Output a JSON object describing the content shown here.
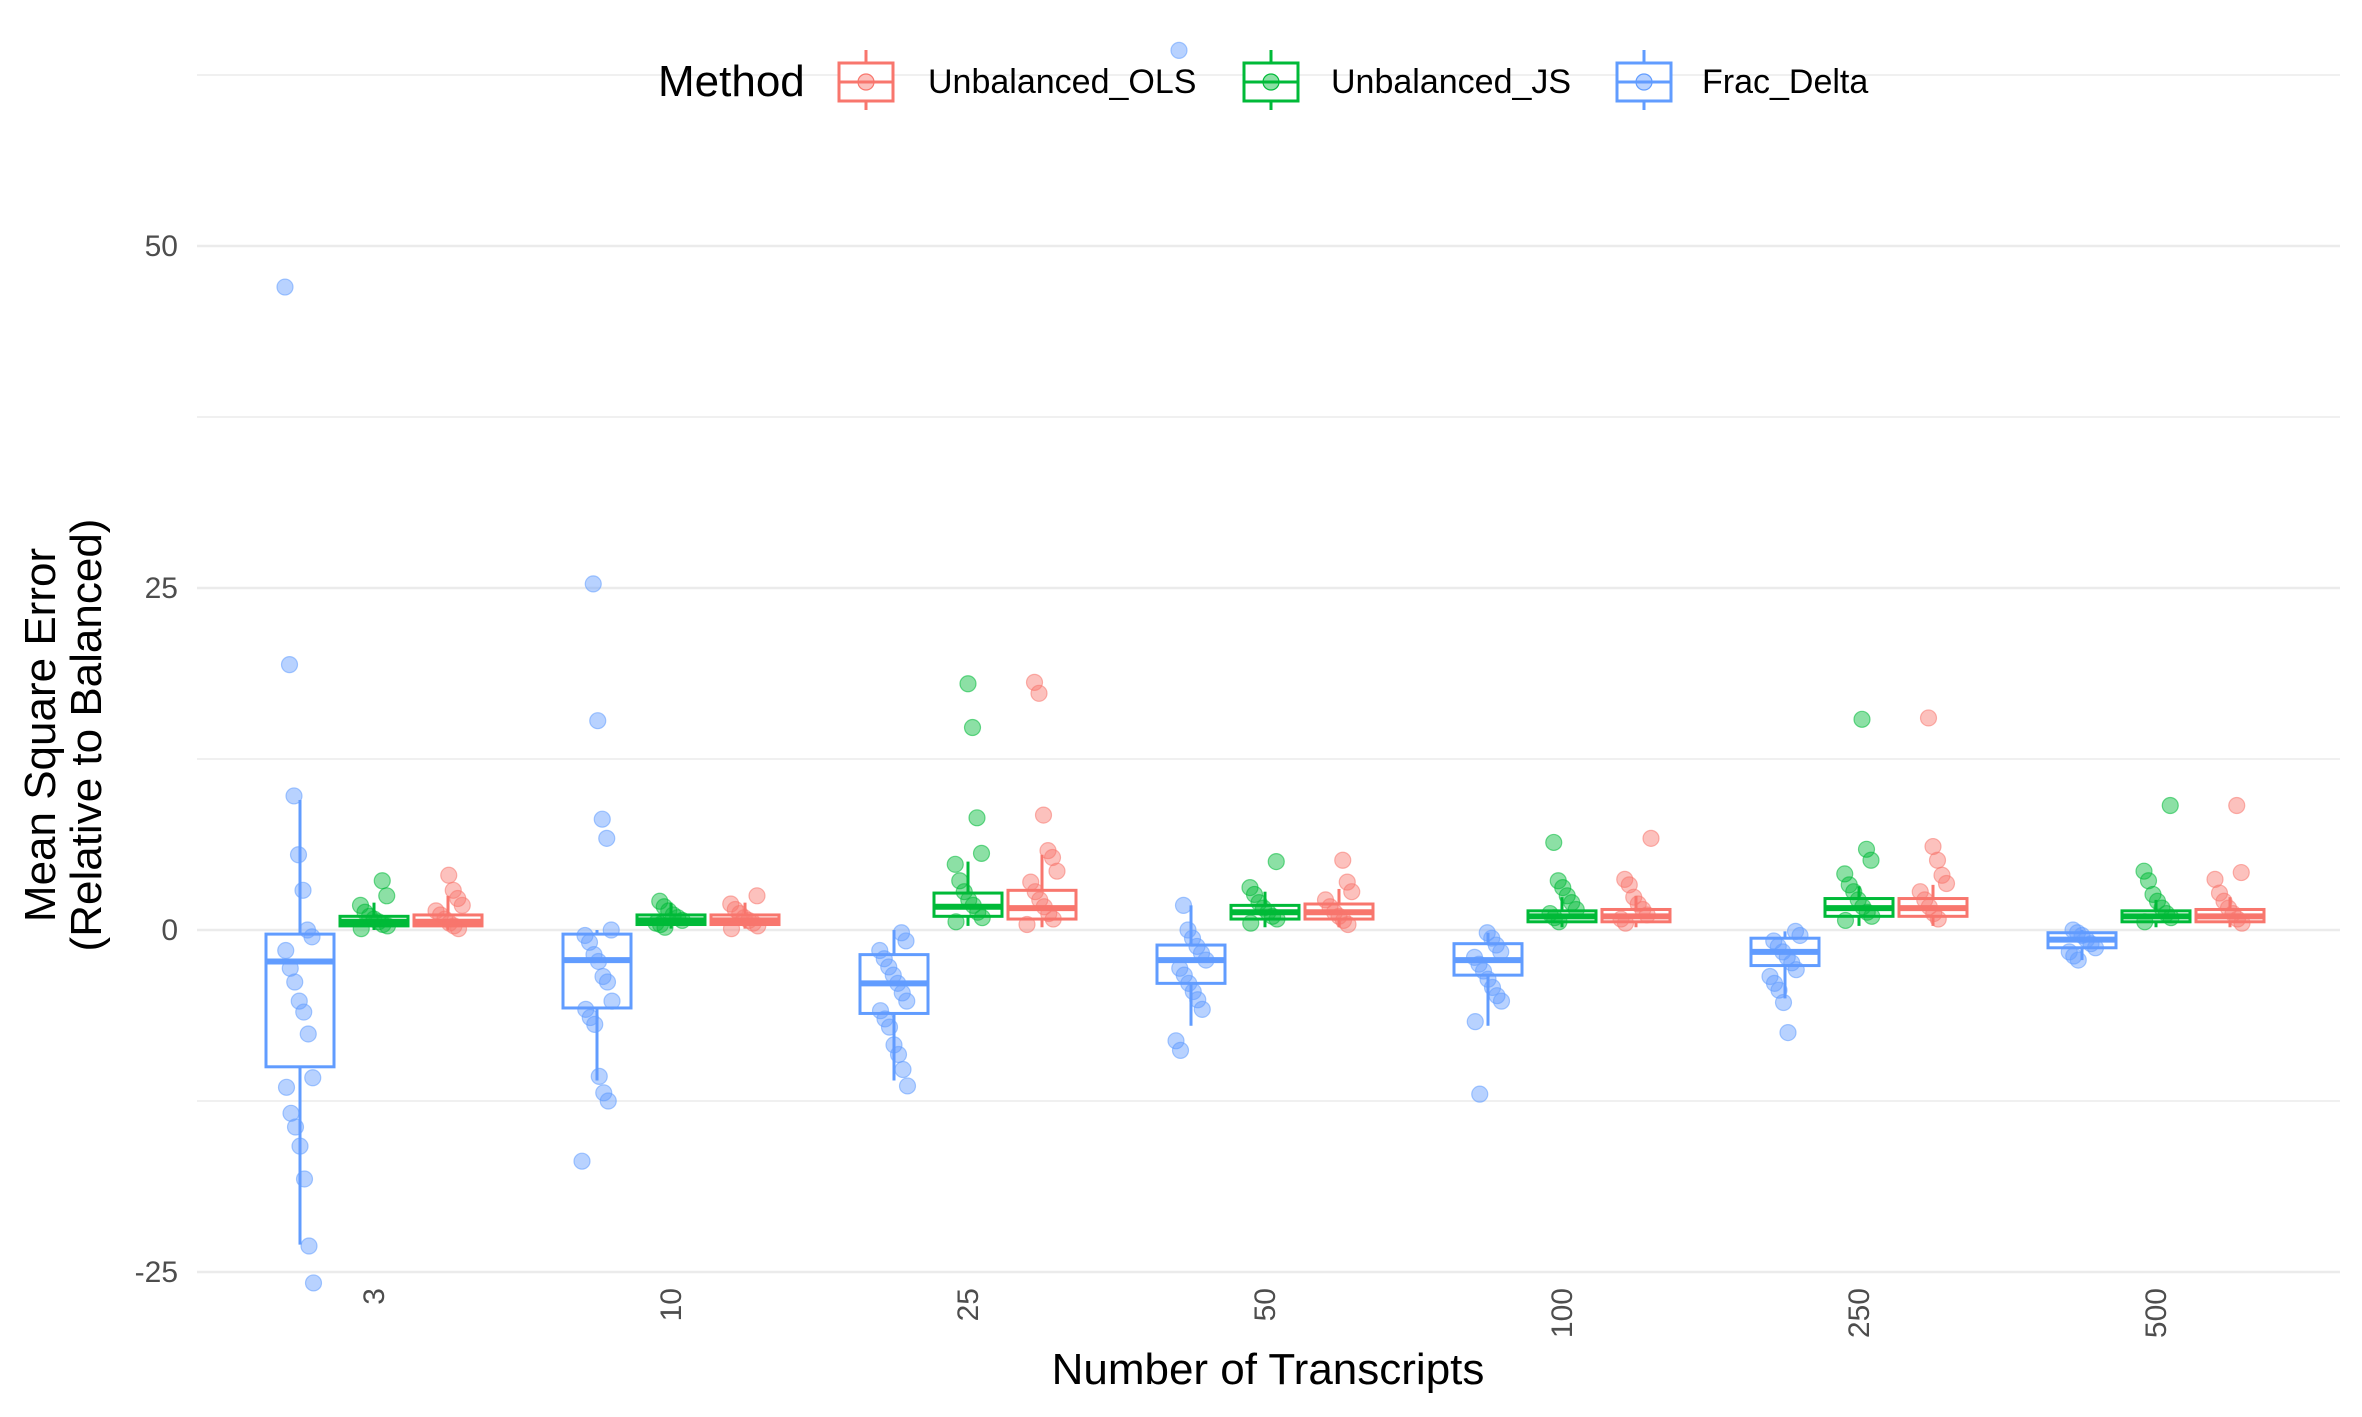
{
  "chart_data": {
    "type": "box",
    "title": "",
    "xlabel": "Number of Transcripts",
    "ylabel_lines": [
      "Mean Square Error",
      "(Relative to Balanced)"
    ],
    "ylim": [
      -29.5,
      63
    ],
    "yticks": [
      -25,
      0,
      25,
      50
    ],
    "ytick_labels": [
      "-25",
      "0",
      "25",
      "50"
    ],
    "grid": true,
    "legend": {
      "title": "Method",
      "placement": "top",
      "entries": [
        "Unbalanced_OLS",
        "Unbalanced_JS",
        "Frac_Delta"
      ]
    },
    "categories": [
      "3",
      "10",
      "25",
      "50",
      "100",
      "250",
      "500"
    ],
    "series": [
      {
        "name": "Frac_Delta",
        "color": "#619CFF",
        "boxes": [
          {
            "q1": -10,
            "median": -2.3,
            "q3": -0.3,
            "lower": -23,
            "upper": 9.5
          },
          {
            "q1": -5.7,
            "median": -2.2,
            "q3": -0.3,
            "lower": -11,
            "upper": 0
          },
          {
            "q1": -6.1,
            "median": -3.9,
            "q3": -1.8,
            "lower": -11,
            "upper": 0
          },
          {
            "q1": -3.9,
            "median": -2.2,
            "q3": -1.1,
            "lower": -7,
            "upper": 1.8
          },
          {
            "q1": -3.3,
            "median": -2.2,
            "q3": -1.0,
            "lower": -7,
            "upper": -0.2
          },
          {
            "q1": -2.6,
            "median": -1.6,
            "q3": -0.6,
            "lower": -5,
            "upper": -0.1
          },
          {
            "q1": -1.3,
            "median": -0.7,
            "q3": -0.2,
            "lower": -2.2,
            "upper": 0
          }
        ],
        "points": [
          [
            47,
            19.4,
            9.8,
            5.5,
            2.9,
            0,
            -0.5,
            -1.5,
            -2.8,
            -3.8,
            -5.2,
            -6,
            -7.6,
            -10.8,
            -11.5,
            -13.4,
            -14.4,
            -15.8,
            -18.2,
            -23.1,
            -25.8
          ],
          [
            25.3,
            15.3,
            8.1,
            6.7,
            0,
            -0.4,
            -0.9,
            -1.8,
            -2.3,
            -3.4,
            -3.8,
            -5.2,
            -5.8,
            -6.4,
            -6.9,
            -10.7,
            -11.9,
            -12.5,
            -16.9
          ],
          [
            -0.2,
            -0.8,
            -1.5,
            -2.1,
            -2.7,
            -3.3,
            -3.9,
            -4.6,
            -5.2,
            -5.9,
            -6.5,
            -7.1,
            -8.4,
            -9.1,
            -10.2,
            -11.4
          ],
          [
            64.3,
            1.8,
            0,
            -0.6,
            -1.2,
            -1.7,
            -2.2,
            -2.8,
            -3.3,
            -3.9,
            -4.5,
            -5.1,
            -5.8,
            -8.1,
            -8.8
          ],
          [
            -0.2,
            -0.6,
            -1.1,
            -1.6,
            -2,
            -2.5,
            -3,
            -3.6,
            -4.2,
            -4.8,
            -5.2,
            -6.7,
            -12
          ],
          [
            -0.1,
            -0.4,
            -0.8,
            -1.2,
            -1.6,
            -2,
            -2.4,
            -2.9,
            -3.4,
            -3.9,
            -4.4,
            -5.3,
            -7.5
          ],
          [
            0,
            -0.2,
            -0.4,
            -0.7,
            -1,
            -1.3,
            -1.6,
            -1.9,
            -2.2
          ]
        ]
      },
      {
        "name": "Unbalanced_JS",
        "color": "#00BA38",
        "boxes": [
          {
            "q1": 0.3,
            "median": 0.6,
            "q3": 1.0,
            "lower": 0,
            "upper": 2
          },
          {
            "q1": 0.4,
            "median": 0.7,
            "q3": 1.1,
            "lower": 0.1,
            "upper": 2
          },
          {
            "q1": 1.0,
            "median": 1.7,
            "q3": 2.7,
            "lower": 0.3,
            "upper": 5
          },
          {
            "q1": 0.8,
            "median": 1.3,
            "q3": 1.8,
            "lower": 0.2,
            "upper": 2.8
          },
          {
            "q1": 0.6,
            "median": 1.0,
            "q3": 1.4,
            "lower": 0.2,
            "upper": 2.4
          },
          {
            "q1": 1.0,
            "median": 1.6,
            "q3": 2.3,
            "lower": 0.3,
            "upper": 3.2
          },
          {
            "q1": 0.6,
            "median": 1.0,
            "q3": 1.4,
            "lower": 0.2,
            "upper": 2.2
          }
        ],
        "points": [
          [
            3.6,
            2.5,
            1.8,
            1.3,
            1,
            0.8,
            0.6,
            0.4,
            0.3,
            0.1
          ],
          [
            2.1,
            1.7,
            1.4,
            1.1,
            0.9,
            0.7,
            0.5,
            0.4,
            0.2
          ],
          [
            18,
            14.8,
            8.2,
            5.6,
            4.8,
            3.6,
            2.8,
            2.2,
            1.8,
            1.3,
            0.9,
            0.6
          ],
          [
            5,
            3.1,
            2.6,
            2,
            1.6,
            1.3,
            1,
            0.8,
            0.5
          ],
          [
            6.4,
            3.6,
            3.1,
            2.5,
            2,
            1.5,
            1.2,
            0.9,
            0.6
          ],
          [
            15.4,
            5.9,
            5.1,
            4.1,
            3.3,
            2.8,
            2.2,
            1.7,
            1.3,
            1,
            0.7
          ],
          [
            9.1,
            4.3,
            3.6,
            2.6,
            2.1,
            1.6,
            1.2,
            0.9,
            0.6
          ]
        ]
      },
      {
        "name": "Unbalanced_OLS",
        "color": "#F8766D",
        "boxes": [
          {
            "q1": 0.3,
            "median": 0.6,
            "q3": 1.1,
            "lower": 0,
            "upper": 2.5
          },
          {
            "q1": 0.4,
            "median": 0.7,
            "q3": 1.1,
            "lower": 0.1,
            "upper": 2
          },
          {
            "q1": 0.8,
            "median": 1.6,
            "q3": 2.9,
            "lower": 0.2,
            "upper": 5.5
          },
          {
            "q1": 0.8,
            "median": 1.3,
            "q3": 1.9,
            "lower": 0.2,
            "upper": 3
          },
          {
            "q1": 0.6,
            "median": 1.0,
            "q3": 1.5,
            "lower": 0.2,
            "upper": 2.5
          },
          {
            "q1": 1.0,
            "median": 1.6,
            "q3": 2.3,
            "lower": 0.3,
            "upper": 3.3
          },
          {
            "q1": 0.6,
            "median": 1.0,
            "q3": 1.5,
            "lower": 0.2,
            "upper": 2.4
          }
        ],
        "points": [
          [
            4,
            2.9,
            2.3,
            1.8,
            1.4,
            1.1,
            0.8,
            0.5,
            0.3,
            0.1
          ],
          [
            2.5,
            1.9,
            1.5,
            1.2,
            0.9,
            0.7,
            0.5,
            0.3,
            0.1
          ],
          [
            18.1,
            17.3,
            8.4,
            5.8,
            5.3,
            4.3,
            3.5,
            2.8,
            2.2,
            1.7,
            1.2,
            0.8,
            0.4
          ],
          [
            5.1,
            3.5,
            2.8,
            2.2,
            1.7,
            1.3,
            1,
            0.7,
            0.4
          ],
          [
            6.7,
            3.7,
            3.3,
            2.4,
            1.9,
            1.5,
            1.1,
            0.8,
            0.5
          ],
          [
            15.5,
            6.1,
            5.1,
            4,
            3.4,
            2.8,
            2.2,
            1.7,
            1.2,
            0.8
          ],
          [
            9.1,
            4.2,
            3.7,
            2.7,
            2.1,
            1.6,
            1.2,
            0.8,
            0.5
          ]
        ]
      }
    ]
  }
}
